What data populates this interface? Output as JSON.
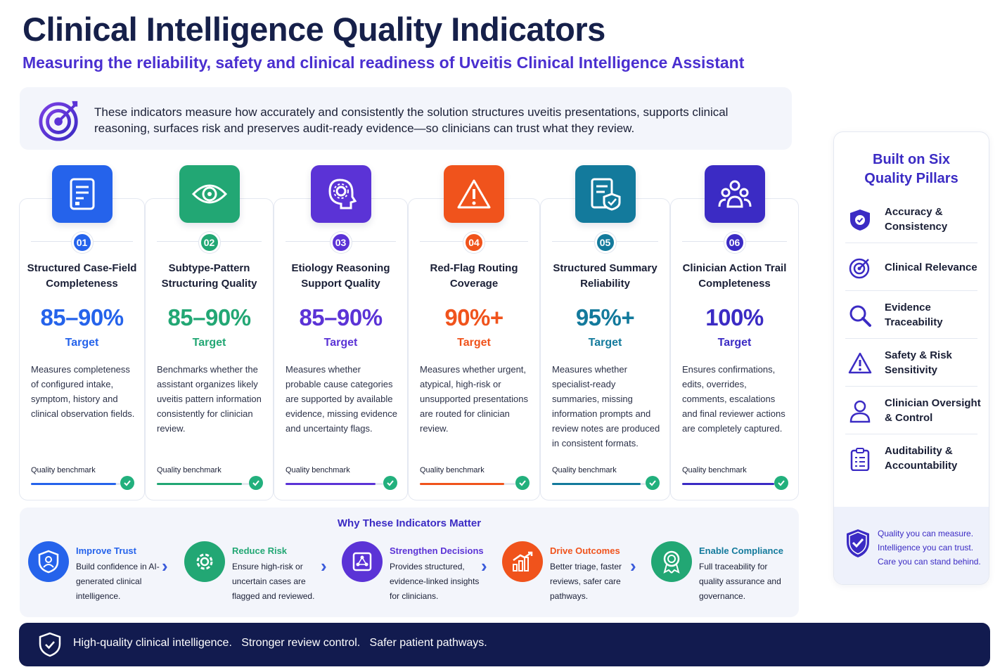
{
  "header": {
    "title": "Clinical Intelligence Quality Indicators",
    "subtitle": "Measuring the reliability, safety and clinical readiness of Uveitis Clinical Intelligence Assistant"
  },
  "intro": {
    "icon": "target-icon",
    "text": "These indicators measure how accurately and consistently the solution structures uveitis presentations, supports clinical reasoning, surfaces risk and preserves audit-ready evidence—so clinicians can trust what they review."
  },
  "indicators": [
    {
      "num": "01",
      "title": "Structured Case-Field Completeness",
      "value": "85–90%",
      "target": "Target",
      "description": "Measures completeness of configured intake, symptom, history and clinical observation fields.",
      "benchmark": "Quality benchmark",
      "benchmark_level": 0.95,
      "color": "#2563eb",
      "icon": "document-icon"
    },
    {
      "num": "02",
      "title": "Subtype-Pattern Structuring Quality",
      "value": "85–90%",
      "target": "Target",
      "description": "Benchmarks whether the assistant organizes likely uveitis pattern information consistently for clinician review.",
      "benchmark": "Quality benchmark",
      "benchmark_level": 0.92,
      "color": "#22a774",
      "icon": "eye-icon"
    },
    {
      "num": "03",
      "title": "Etiology Reasoning Support Quality",
      "value": "85–90%",
      "target": "Target",
      "description": "Measures whether probable cause categories are supported by available evidence, missing evidence and uncertainty flags.",
      "benchmark": "Quality benchmark",
      "benchmark_level": 0.92,
      "color": "#5b33d6",
      "icon": "brain-gear-icon"
    },
    {
      "num": "04",
      "title": "Red-Flag Routing Coverage",
      "value": "90%+",
      "target": "Target",
      "description": "Measures whether urgent, atypical, high-risk or unsupported presentations are routed for clinician review.",
      "benchmark": "Quality benchmark",
      "benchmark_level": 0.88,
      "color": "#f0531c",
      "icon": "warning-icon"
    },
    {
      "num": "05",
      "title": "Structured Summary Reliability",
      "value": "95%+",
      "target": "Target",
      "description": "Measures whether specialist-ready summaries, missing information prompts and review notes are produced in consistent formats.",
      "benchmark": "Quality benchmark",
      "benchmark_level": 0.95,
      "color": "#137a9c",
      "icon": "shield-document-icon"
    },
    {
      "num": "06",
      "title": "Clinician Action Trail Completeness",
      "value": "100%",
      "target": "Target",
      "description": "Ensures confirmations, edits, overrides, comments, escalations and final reviewer actions are completely captured.",
      "benchmark": "Quality benchmark",
      "benchmark_level": 1.0,
      "color": "#3b2bc4",
      "icon": "users-icon"
    }
  ],
  "why": {
    "title": "Why These Indicators Matter",
    "items": [
      {
        "title": "Improve Trust",
        "text": "Build confidence in AI-generated clinical intelligence.",
        "color": "#2563eb",
        "icon": "trust-shield-icon"
      },
      {
        "title": "Reduce Risk",
        "text": "Ensure high-risk or uncertain cases are flagged and reviewed.",
        "color": "#22a774",
        "icon": "gear-icon"
      },
      {
        "title": "Strengthen Decisions",
        "text": "Provides structured, evidence-linked insights for clinicians.",
        "color": "#5b33d6",
        "icon": "network-icon"
      },
      {
        "title": "Drive Outcomes",
        "text": "Better triage, faster reviews, safer care pathways.",
        "color": "#f0531c",
        "icon": "growth-chart-icon"
      },
      {
        "title": "Enable Compliance",
        "text": "Full traceability for quality assurance and governance.",
        "color": "#22a774",
        "icon": "award-icon"
      }
    ]
  },
  "pillars": {
    "title": "Built on Six Quality Pillars",
    "items": [
      {
        "label": "Accuracy & Consistency",
        "icon": "shield-check-icon"
      },
      {
        "label": "Clinical Relevance",
        "icon": "target-icon"
      },
      {
        "label": "Evidence Traceability",
        "icon": "magnifier-icon"
      },
      {
        "label": "Safety & Risk Sensitivity",
        "icon": "warning-icon"
      },
      {
        "label": "Clinician Oversight & Control",
        "icon": "person-icon"
      },
      {
        "label": "Auditability & Accountability",
        "icon": "clipboard-icon"
      }
    ],
    "quote": "Quality you can measure. Intelligence you can trust. Care you can stand behind."
  },
  "footer": {
    "icon": "shield-check-icon",
    "text": "High-quality clinical intelligence.   Stronger review control.   Safer patient pathways."
  }
}
